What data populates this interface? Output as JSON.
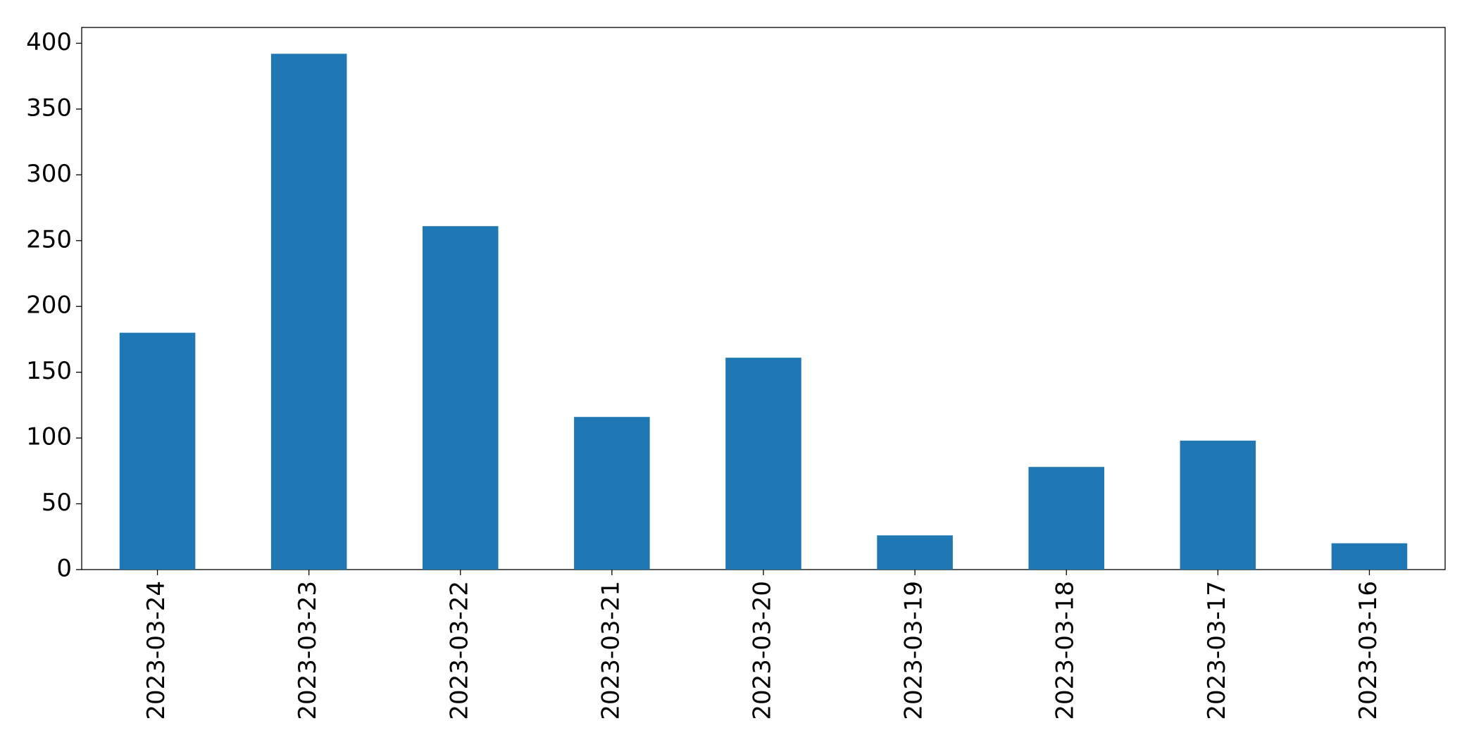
{
  "chart_data": {
    "type": "bar",
    "categories": [
      "2023-03-24",
      "2023-03-23",
      "2023-03-22",
      "2023-03-21",
      "2023-03-20",
      "2023-03-19",
      "2023-03-18",
      "2023-03-17",
      "2023-03-16"
    ],
    "values": [
      180,
      392,
      261,
      116,
      161,
      26,
      78,
      98,
      20
    ],
    "color": "#1f77b4",
    "ylim": [
      0,
      412
    ],
    "yticks": [
      0,
      50,
      100,
      150,
      200,
      250,
      300,
      350,
      400
    ],
    "grid": false
  }
}
